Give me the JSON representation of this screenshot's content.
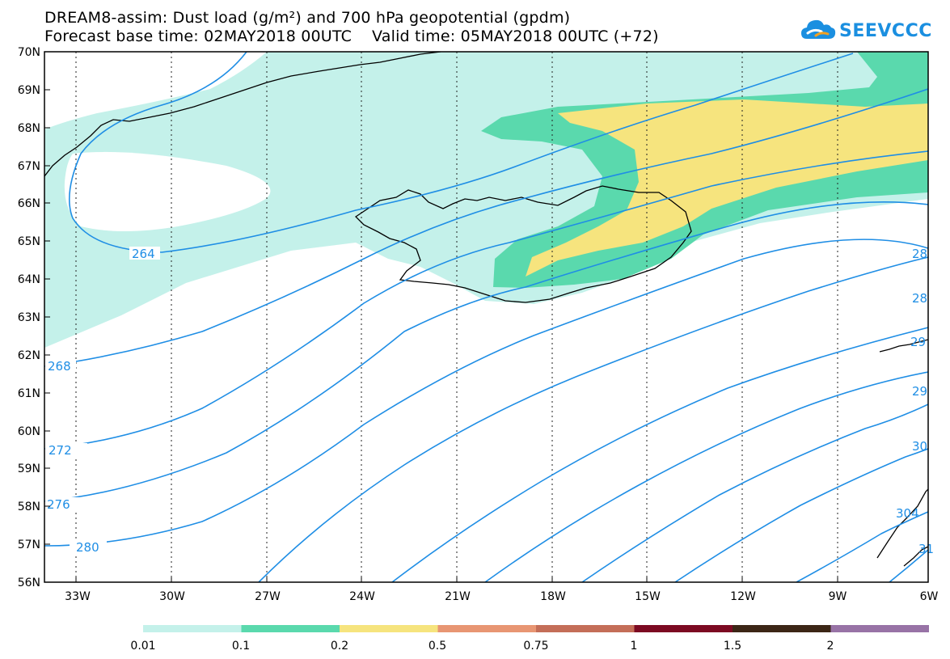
{
  "title": {
    "line1": "DREAM8-assim: Dust load (g/m²) and 700 hPa geopotential (gpdm)",
    "line2": "Forecast base time: 02MAY2018 00UTC    Valid time: 05MAY2018 00UTC (+72)"
  },
  "logo": {
    "text": "SEEVCCC",
    "icon": "cloud-icon"
  },
  "map": {
    "lat_labels": [
      "70N",
      "69N",
      "68N",
      "67N",
      "66N",
      "65N",
      "64N",
      "63N",
      "62N",
      "61N",
      "60N",
      "59N",
      "58N",
      "57N",
      "56N"
    ],
    "lon_labels": [
      "33W",
      "30W",
      "27W",
      "24W",
      "21W",
      "18W",
      "15W",
      "12W",
      "9W",
      "6W"
    ],
    "contour_labels": [
      "264",
      "268",
      "272",
      "276",
      "280",
      "28",
      "28",
      "29",
      "29",
      "30",
      "304",
      "31"
    ]
  },
  "legend": {
    "colors": [
      "#c4f1ea",
      "#5ad9ad",
      "#f6e47e",
      "#e89673",
      "#c46e58",
      "#7c0a22",
      "#3c2616",
      "#9873a6"
    ],
    "labels": [
      "0.01",
      "0.1",
      "0.2",
      "0.5",
      "0.75",
      "1",
      "1.5",
      "2"
    ]
  }
}
